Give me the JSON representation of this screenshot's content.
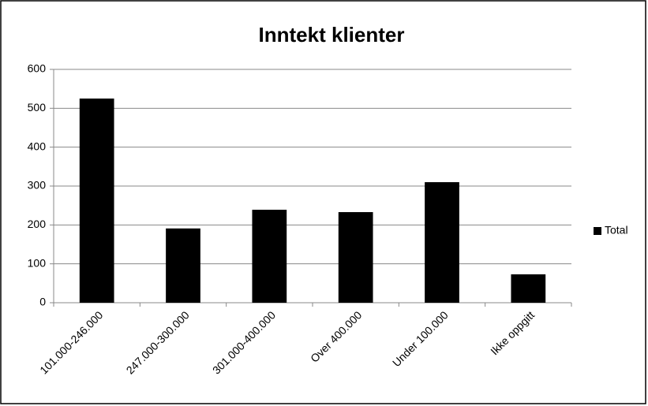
{
  "chart_data": {
    "type": "bar",
    "title": "Inntekt klienter",
    "categories": [
      "101.000-246.000",
      "247.000-300.000",
      "301.000-400.000",
      "Over 400.000",
      "Under 100.000",
      "Ikke oppgitt"
    ],
    "series": [
      {
        "name": "Total",
        "color": "#000000",
        "values": [
          525,
          191,
          239,
          233,
          310,
          73
        ]
      }
    ],
    "ylim": [
      0,
      600
    ],
    "yticks": [
      0,
      100,
      200,
      300,
      400,
      500,
      600
    ],
    "grid": true,
    "legend": "right"
  }
}
